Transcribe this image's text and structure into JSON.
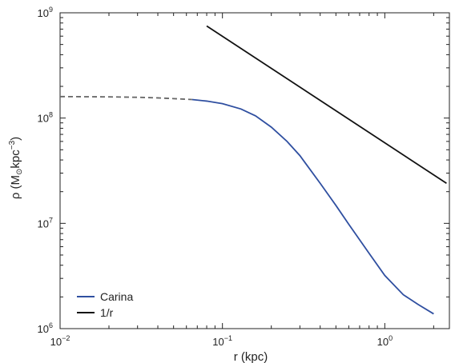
{
  "chart_data": {
    "type": "line",
    "xlabel": "r (kpc)",
    "ylabel_main": "ρ (M",
    "ylabel_sub": "⊙",
    "ylabel_unit": "kpc",
    "ylabel_sup": "−3",
    "ylabel_close": ")",
    "xscale": "log",
    "yscale": "log",
    "xlim": [
      0.01,
      2.5
    ],
    "ylim": [
      1000000,
      1000000000
    ],
    "x_ticks": [
      {
        "value": 0.01,
        "base": "10",
        "exp": "−2"
      },
      {
        "value": 0.1,
        "base": "10",
        "exp": "−1"
      },
      {
        "value": 1,
        "base": "10",
        "exp": "0"
      }
    ],
    "y_ticks": [
      {
        "value": 1000000,
        "base": "10",
        "exp": "6"
      },
      {
        "value": 10000000,
        "base": "10",
        "exp": "7"
      },
      {
        "value": 100000000,
        "base": "10",
        "exp": "8"
      },
      {
        "value": 1000000000,
        "base": "10",
        "exp": "9"
      }
    ],
    "grid": false,
    "legend_position": "bottom-left",
    "series": [
      {
        "name": "Carina",
        "color": "#2f4fa0",
        "style": "solid",
        "x": [
          0.065,
          0.08,
          0.1,
          0.13,
          0.16,
          0.2,
          0.25,
          0.3,
          0.4,
          0.5,
          0.6,
          0.8,
          1.0,
          1.3,
          1.6,
          2.0
        ],
        "y": [
          150000000,
          145000000,
          137000000,
          122000000,
          105000000,
          82000000,
          60000000,
          44000000,
          24000000,
          14800000,
          9800000,
          5200000,
          3200000,
          2100000,
          1700000,
          1380000
        ]
      },
      {
        "name": "",
        "color": "#666666",
        "style": "dashed",
        "x": [
          0.01,
          0.02,
          0.03,
          0.04,
          0.05,
          0.065
        ],
        "y": [
          160000000,
          159000000,
          157500000,
          155500000,
          153000000,
          150000000
        ]
      },
      {
        "name": "1/r",
        "color": "#111111",
        "style": "solid",
        "x": [
          0.08,
          2.4
        ],
        "y": [
          750000000,
          24000000
        ]
      }
    ]
  }
}
